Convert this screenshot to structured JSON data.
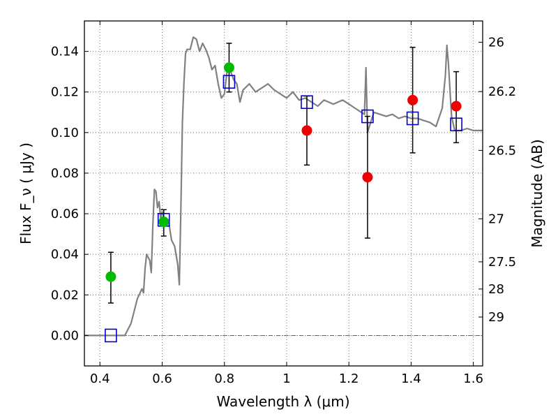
{
  "chart_data": {
    "type": "scatter",
    "xlabel": "Wavelength  λ (μm)",
    "ylabel": "Flux  F_ν  ( μJy )",
    "ylabel_right": "Magnitude (AB)",
    "xlim": [
      0.35,
      1.63
    ],
    "ylim": [
      -0.015,
      0.155
    ],
    "grid": true,
    "x_ticks": [
      0.4,
      0.6,
      0.8,
      1.0,
      1.2,
      1.4,
      1.6
    ],
    "x_tick_labels": [
      "0.4",
      "0.6",
      "0.8",
      "1",
      "1.2",
      "1.4",
      "1.6"
    ],
    "y_ticks": [
      0.0,
      0.02,
      0.04,
      0.06,
      0.08,
      0.1,
      0.12,
      0.14
    ],
    "y_tick_labels": [
      "0.00",
      "0.02",
      "0.04",
      "0.06",
      "0.08",
      "0.10",
      "0.12",
      "0.14"
    ],
    "right_ticks": [
      {
        "label": "26",
        "flux": 0.1445
      },
      {
        "label": "26.2",
        "flux": 0.1202
      },
      {
        "label": "26.5",
        "flux": 0.0912
      },
      {
        "label": "27",
        "flux": 0.0575
      },
      {
        "label": "27.5",
        "flux": 0.0363
      },
      {
        "label": "28",
        "flux": 0.0229
      },
      {
        "label": "29",
        "flux": 0.0091
      }
    ],
    "colors": {
      "model": "#808080",
      "green": "#00bb00",
      "red": "#ee0000",
      "square": "#0000cc",
      "errorbar": "#000000"
    },
    "series": [
      {
        "kind": "line",
        "points": [
          [
            0.35,
            0.0
          ],
          [
            0.48,
            0.0
          ],
          [
            0.5,
            0.006
          ],
          [
            0.52,
            0.018
          ],
          [
            0.535,
            0.023
          ],
          [
            0.54,
            0.021
          ],
          [
            0.545,
            0.033
          ],
          [
            0.55,
            0.04
          ],
          [
            0.56,
            0.037
          ],
          [
            0.565,
            0.031
          ],
          [
            0.57,
            0.054
          ],
          [
            0.575,
            0.072
          ],
          [
            0.58,
            0.071
          ],
          [
            0.585,
            0.063
          ],
          [
            0.59,
            0.066
          ],
          [
            0.595,
            0.058
          ],
          [
            0.6,
            0.061
          ],
          [
            0.61,
            0.055
          ],
          [
            0.62,
            0.057
          ],
          [
            0.63,
            0.047
          ],
          [
            0.64,
            0.044
          ],
          [
            0.65,
            0.035
          ],
          [
            0.655,
            0.025
          ],
          [
            0.66,
            0.062
          ],
          [
            0.665,
            0.105
          ],
          [
            0.67,
            0.125
          ],
          [
            0.675,
            0.139
          ],
          [
            0.68,
            0.141
          ],
          [
            0.69,
            0.141
          ],
          [
            0.7,
            0.147
          ],
          [
            0.71,
            0.146
          ],
          [
            0.72,
            0.14
          ],
          [
            0.73,
            0.144
          ],
          [
            0.74,
            0.141
          ],
          [
            0.75,
            0.137
          ],
          [
            0.76,
            0.131
          ],
          [
            0.77,
            0.133
          ],
          [
            0.78,
            0.124
          ],
          [
            0.79,
            0.117
          ],
          [
            0.8,
            0.119
          ],
          [
            0.81,
            0.132
          ],
          [
            0.82,
            0.13
          ],
          [
            0.83,
            0.126
          ],
          [
            0.84,
            0.124
          ],
          [
            0.85,
            0.115
          ],
          [
            0.86,
            0.121
          ],
          [
            0.88,
            0.124
          ],
          [
            0.9,
            0.12
          ],
          [
            0.92,
            0.122
          ],
          [
            0.94,
            0.124
          ],
          [
            0.96,
            0.121
          ],
          [
            0.98,
            0.119
          ],
          [
            1.0,
            0.117
          ],
          [
            1.02,
            0.12
          ],
          [
            1.04,
            0.116
          ],
          [
            1.06,
            0.117
          ],
          [
            1.08,
            0.115
          ],
          [
            1.1,
            0.113
          ],
          [
            1.12,
            0.116
          ],
          [
            1.15,
            0.114
          ],
          [
            1.18,
            0.116
          ],
          [
            1.2,
            0.114
          ],
          [
            1.22,
            0.112
          ],
          [
            1.24,
            0.11
          ],
          [
            1.25,
            0.109
          ],
          [
            1.255,
            0.132
          ],
          [
            1.26,
            0.1
          ],
          [
            1.28,
            0.11
          ],
          [
            1.3,
            0.109
          ],
          [
            1.32,
            0.108
          ],
          [
            1.34,
            0.109
          ],
          [
            1.36,
            0.107
          ],
          [
            1.38,
            0.108
          ],
          [
            1.4,
            0.107
          ],
          [
            1.42,
            0.107
          ],
          [
            1.44,
            0.106
          ],
          [
            1.46,
            0.105
          ],
          [
            1.48,
            0.103
          ],
          [
            1.5,
            0.112
          ],
          [
            1.51,
            0.128
          ],
          [
            1.515,
            0.143
          ],
          [
            1.52,
            0.134
          ],
          [
            1.53,
            0.108
          ],
          [
            1.54,
            0.101
          ],
          [
            1.56,
            0.101
          ],
          [
            1.58,
            0.102
          ],
          [
            1.6,
            0.101
          ],
          [
            1.63,
            0.101
          ]
        ]
      },
      {
        "kind": "errorbars",
        "points": [
          {
            "x": 0.435,
            "low": 0.016,
            "high": 0.041
          },
          {
            "x": 0.605,
            "low": 0.049,
            "high": 0.062
          },
          {
            "x": 0.815,
            "low": 0.12,
            "high": 0.144
          },
          {
            "x": 1.065,
            "low": 0.084,
            "high": 0.118
          },
          {
            "x": 1.26,
            "low": 0.048,
            "high": 0.108
          },
          {
            "x": 1.405,
            "low": 0.09,
            "high": 0.142
          },
          {
            "x": 1.545,
            "low": 0.095,
            "high": 0.13
          }
        ]
      },
      {
        "kind": "green-points",
        "points": [
          [
            0.435,
            0.029
          ],
          [
            0.605,
            0.056
          ],
          [
            0.815,
            0.132
          ]
        ]
      },
      {
        "kind": "red-points",
        "points": [
          [
            1.065,
            0.101
          ],
          [
            1.26,
            0.078
          ],
          [
            1.405,
            0.116
          ],
          [
            1.545,
            0.113
          ]
        ]
      },
      {
        "kind": "open-squares",
        "points": [
          [
            0.435,
            0.0
          ],
          [
            0.605,
            0.057
          ],
          [
            0.815,
            0.125
          ],
          [
            1.065,
            0.115
          ],
          [
            1.26,
            0.108
          ],
          [
            1.405,
            0.107
          ],
          [
            1.545,
            0.104
          ]
        ]
      }
    ]
  }
}
